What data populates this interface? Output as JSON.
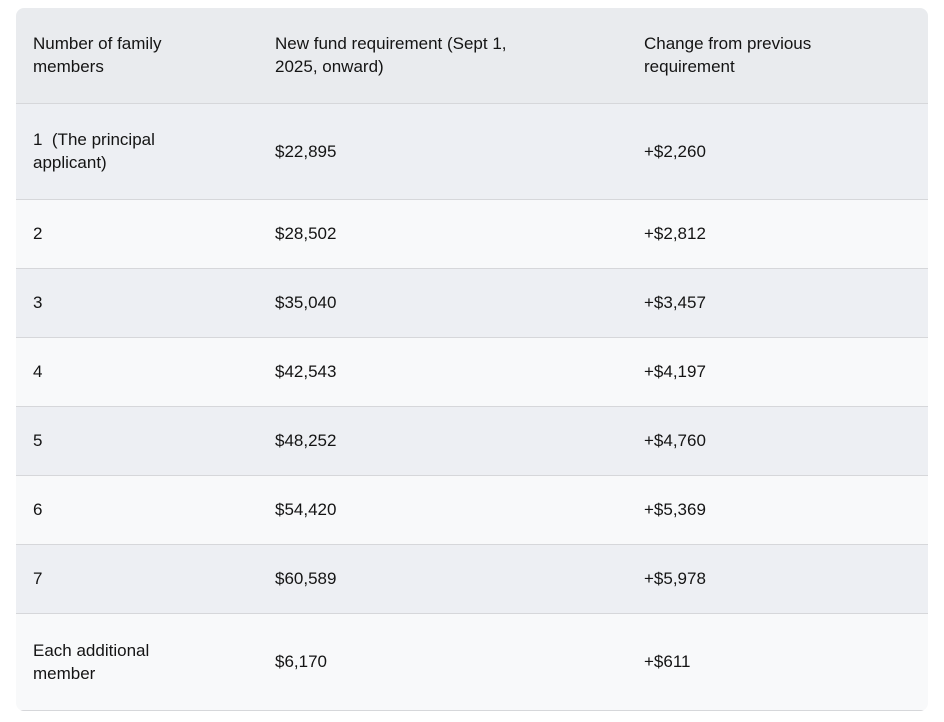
{
  "chart_data": {
    "type": "table",
    "title": "",
    "columns": [
      "Number of family members",
      "New fund requirement (Sept 1, 2025, onward)",
      "Change from previous requirement"
    ],
    "rows": [
      [
        "1  (The principal applicant)",
        "$22,895",
        "+$2,260"
      ],
      [
        "2",
        "$28,502",
        "+$2,812"
      ],
      [
        "3",
        "$35,040",
        "+$3,457"
      ],
      [
        "4",
        "$42,543",
        "+$4,197"
      ],
      [
        "5",
        "$48,252",
        "+$4,760"
      ],
      [
        "6",
        "$54,420",
        "+$5,369"
      ],
      [
        "7",
        "$60,589",
        "+$5,978"
      ],
      [
        "Each additional member",
        "$6,170",
        "+$611"
      ]
    ],
    "layout": {
      "zebra_striping": true,
      "grid": "horizontal-dividers-only"
    },
    "colors": {
      "header_bg": "#e9ebee",
      "row_odd_bg": "#edeff3",
      "row_even_bg": "#f8f9fa",
      "divider": "#d6d7da",
      "text": "#141414",
      "page_bg": "#ffffff"
    }
  }
}
